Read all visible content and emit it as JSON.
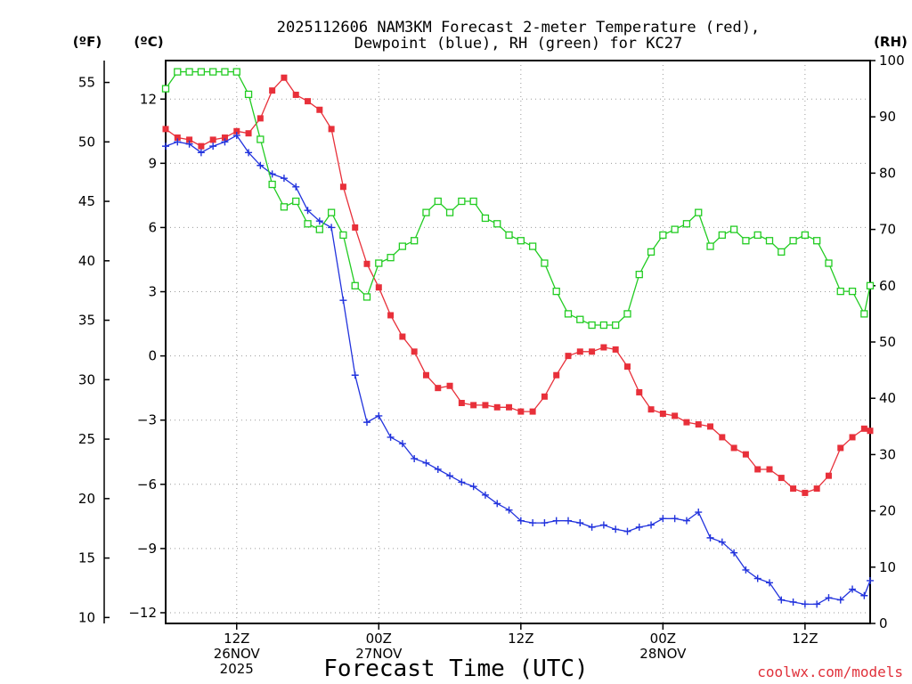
{
  "chart_data": {
    "type": "line",
    "title_line1": "2025112606 NAM3KM Forecast 2-meter Temperature (red),",
    "title_line2": "Dewpoint (blue), RH (green) for KC27",
    "xlabel": "Forecast Time (UTC)",
    "credit": "coolwx.com/models",
    "units": {
      "fahrenheit": "(ºF)",
      "celsius": "(ºC)",
      "rh": "(RH)"
    },
    "left_f_ticks": [
      "55",
      "50",
      "45",
      "40",
      "35",
      "30",
      "25",
      "20",
      "15",
      "10"
    ],
    "left_c_ticks": [
      "12",
      "9",
      "6",
      "3",
      "0",
      "−3",
      "−6",
      "−9",
      "−12"
    ],
    "right_rh_ticks": [
      "100",
      "90",
      "80",
      "70",
      "60",
      "50",
      "40",
      "30",
      "20",
      "10",
      "0"
    ],
    "x_ticks": [
      {
        "hour": 6,
        "line1": "12Z",
        "line2": "26NOV",
        "line3": "2025"
      },
      {
        "hour": 18,
        "line1": "00Z",
        "line2": "27NOV",
        "line3": ""
      },
      {
        "hour": 30,
        "line1": "12Z",
        "line2": "",
        "line3": ""
      },
      {
        "hour": 42,
        "line1": "00Z",
        "line2": "28NOV",
        "line3": ""
      },
      {
        "hour": 54,
        "line1": "12Z",
        "line2": "",
        "line3": ""
      }
    ],
    "x_range_hours": [
      0,
      59.5
    ],
    "temp_range_c": [
      -12.5,
      13.8
    ],
    "rh_range": [
      0,
      100
    ],
    "grid": true,
    "series": [
      {
        "name": "Temperature",
        "unit": "C",
        "color": "#e8303a",
        "marker": "filled-square",
        "x": [
          0,
          1,
          2,
          3,
          4,
          5,
          6,
          7,
          8,
          9,
          10,
          11,
          12,
          13,
          14,
          15,
          16,
          17,
          18,
          19,
          20,
          21,
          22,
          23,
          24,
          25,
          26,
          27,
          28,
          29,
          30,
          31,
          32,
          33,
          34,
          35,
          36,
          37,
          38,
          39,
          40,
          41,
          42,
          43,
          44,
          45,
          46,
          47,
          48,
          49,
          50,
          51,
          52,
          53,
          54,
          55,
          56,
          57,
          58,
          59,
          59.5
        ],
        "values": [
          10.6,
          10.2,
          10.1,
          9.8,
          10.1,
          10.2,
          10.5,
          10.4,
          11.1,
          12.4,
          13.0,
          12.2,
          11.9,
          11.5,
          10.6,
          7.9,
          6.0,
          4.3,
          3.2,
          1.9,
          0.9,
          0.2,
          -0.9,
          -1.5,
          -1.4,
          -2.2,
          -2.3,
          -2.3,
          -2.4,
          -2.4,
          -2.6,
          -2.6,
          -1.9,
          -0.9,
          0.0,
          0.2,
          0.2,
          0.4,
          0.3,
          -0.5,
          -1.7,
          -2.5,
          -2.7,
          -2.8,
          -3.1,
          -3.2,
          -3.3,
          -3.8,
          -4.3,
          -4.6,
          -5.3,
          -5.3,
          -5.7,
          -6.2,
          -6.4,
          -6.2,
          -5.6,
          -4.3,
          -3.8,
          -3.4,
          -3.5
        ]
      },
      {
        "name": "Dewpoint",
        "unit": "C",
        "color": "#2233dd",
        "marker": "plus",
        "x": [
          0,
          1,
          2,
          3,
          4,
          5,
          6,
          7,
          8,
          9,
          10,
          11,
          12,
          13,
          14,
          15,
          16,
          17,
          18,
          19,
          20,
          21,
          22,
          23,
          24,
          25,
          26,
          27,
          28,
          29,
          30,
          31,
          32,
          33,
          34,
          35,
          36,
          37,
          38,
          39,
          40,
          41,
          42,
          43,
          44,
          45,
          46,
          47,
          48,
          49,
          50,
          51,
          52,
          53,
          54,
          55,
          56,
          57,
          58,
          59,
          59.5
        ],
        "values": [
          9.8,
          10.0,
          9.9,
          9.5,
          9.8,
          10.0,
          10.3,
          9.5,
          8.9,
          8.5,
          8.3,
          7.9,
          6.8,
          6.3,
          6.0,
          2.6,
          -0.9,
          -3.1,
          -2.8,
          -3.8,
          -4.1,
          -4.8,
          -5.0,
          -5.3,
          -5.6,
          -5.9,
          -6.1,
          -6.5,
          -6.9,
          -7.2,
          -7.7,
          -7.8,
          -7.8,
          -7.7,
          -7.7,
          -7.8,
          -8.0,
          -7.9,
          -8.1,
          -8.2,
          -8.0,
          -7.9,
          -7.6,
          -7.6,
          -7.7,
          -7.3,
          -8.5,
          -8.7,
          -9.2,
          -10.0,
          -10.4,
          -10.6,
          -11.4,
          -11.5,
          -11.6,
          -11.6,
          -11.3,
          -11.4,
          -10.9,
          -11.2,
          -10.5
        ]
      },
      {
        "name": "RH",
        "unit": "%",
        "color": "#22cc22",
        "marker": "open-square",
        "x": [
          0,
          1,
          2,
          3,
          4,
          5,
          6,
          7,
          8,
          9,
          10,
          11,
          12,
          13,
          14,
          15,
          16,
          17,
          18,
          19,
          20,
          21,
          22,
          23,
          24,
          25,
          26,
          27,
          28,
          29,
          30,
          31,
          32,
          33,
          34,
          35,
          36,
          37,
          38,
          39,
          40,
          41,
          42,
          43,
          44,
          45,
          46,
          47,
          48,
          49,
          50,
          51,
          52,
          53,
          54,
          55,
          56,
          57,
          58,
          59,
          59.5
        ],
        "values": [
          95,
          98,
          98,
          98,
          98,
          98,
          98,
          94,
          86,
          78,
          74,
          75,
          71,
          70,
          73,
          69,
          60,
          58,
          64,
          65,
          67,
          68,
          73,
          75,
          73,
          75,
          75,
          72,
          71,
          69,
          68,
          67,
          64,
          59,
          55,
          54,
          53,
          53,
          53,
          55,
          62,
          66,
          69,
          70,
          71,
          73,
          67,
          69,
          70,
          68,
          69,
          68,
          66,
          68,
          69,
          68,
          64,
          59,
          59,
          55,
          60
        ]
      }
    ]
  }
}
